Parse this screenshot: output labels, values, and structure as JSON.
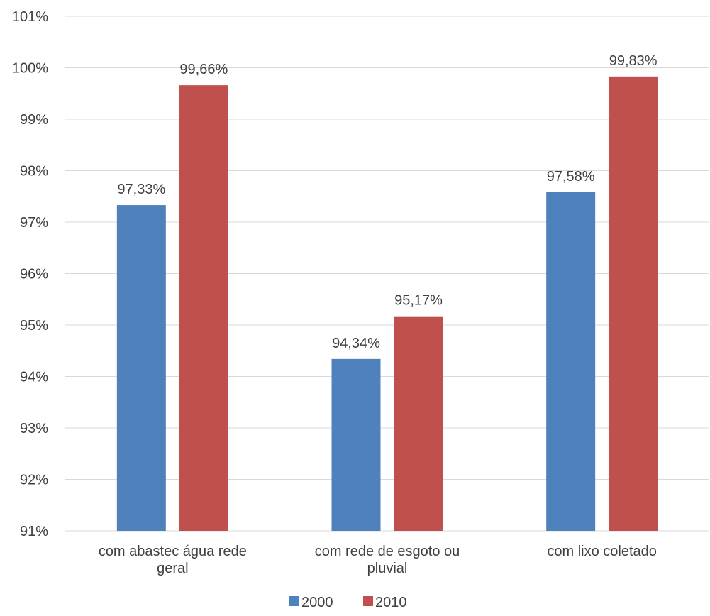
{
  "chart_data": {
    "type": "bar",
    "categories": [
      [
        "com abastec água rede",
        "geral"
      ],
      [
        "com rede de esgoto ou",
        "pluvial"
      ],
      [
        "com lixo coletado"
      ]
    ],
    "series": [
      {
        "name": "2000",
        "color": "#4F81BD",
        "values": [
          97.33,
          94.34,
          97.58
        ],
        "labels": [
          "97,33%",
          "94,34%",
          "97,58%"
        ]
      },
      {
        "name": "2010",
        "color": "#C0504D",
        "values": [
          99.66,
          95.17,
          99.83
        ],
        "labels": [
          "99,66%",
          "95,17%",
          "99,83%"
        ]
      }
    ],
    "ylim": [
      91,
      101
    ],
    "y_ticks": [
      91,
      92,
      93,
      94,
      95,
      96,
      97,
      98,
      99,
      100,
      101
    ],
    "y_tick_labels": [
      "91%",
      "92%",
      "93%",
      "94%",
      "95%",
      "96%",
      "97%",
      "98%",
      "99%",
      "100%",
      "101%"
    ],
    "grid": true,
    "legend": "bottom-center",
    "gridline_color": "#D9D9D9",
    "text_color": "#404040"
  }
}
